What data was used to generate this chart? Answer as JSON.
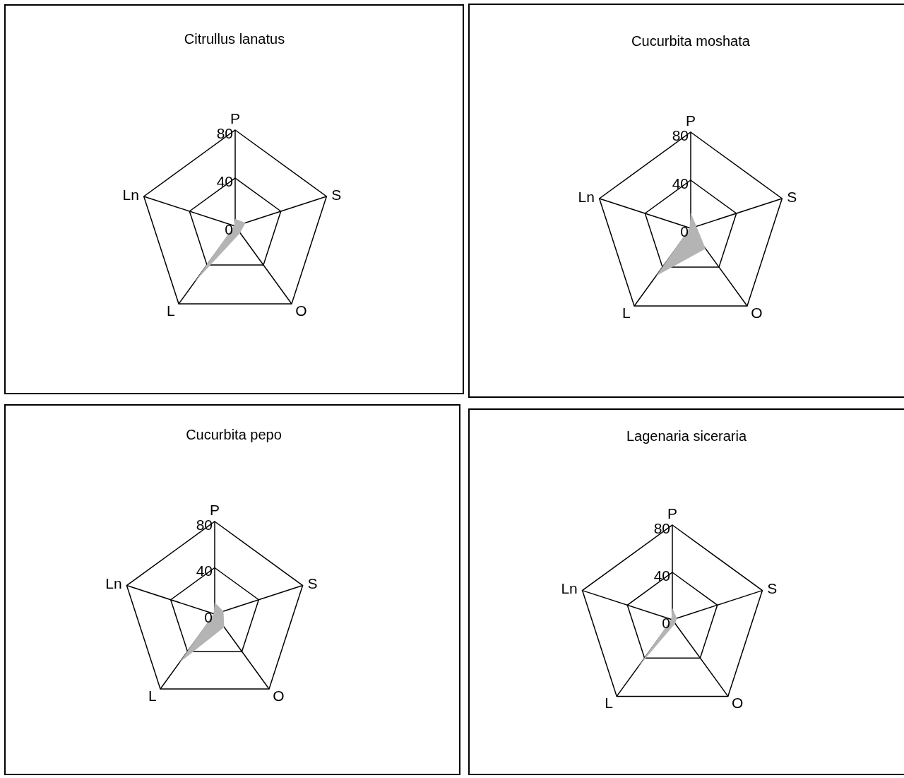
{
  "chart_data": [
    {
      "type": "radar",
      "title": "Citrullus lanatus",
      "categories": [
        "P",
        "S",
        "O",
        "L",
        "Ln"
      ],
      "series": [
        {
          "color": "#b4b4b4",
          "values": [
            6,
            9,
            7,
            58,
            1
          ]
        }
      ],
      "ylim": [
        0,
        80
      ],
      "yticks": [
        0,
        40,
        80
      ],
      "grid": true
    },
    {
      "type": "radar",
      "title": "Cucurbita moshata",
      "categories": [
        "P",
        "S",
        "O",
        "L",
        "Ln"
      ],
      "series": [
        {
          "color": "#b4b4b4",
          "values": [
            13,
            5,
            21,
            49,
            1
          ]
        }
      ],
      "ylim": [
        0,
        80
      ],
      "yticks": [
        0,
        40,
        80
      ],
      "grid": true
    },
    {
      "type": "radar",
      "title": "Cucurbita pepo",
      "categories": [
        "P",
        "S",
        "O",
        "L",
        "Ln"
      ],
      "series": [
        {
          "color": "#b4b4b4",
          "values": [
            10,
            8,
            14,
            52,
            1
          ]
        }
      ],
      "ylim": [
        0,
        80
      ],
      "yticks": [
        0,
        40,
        80
      ],
      "grid": true
    },
    {
      "type": "radar",
      "title": "Lagenaria siceraria",
      "categories": [
        "P",
        "S",
        "O",
        "L",
        "Ln"
      ],
      "series": [
        {
          "color": "#b4b4b4",
          "values": [
            10,
            4,
            4,
            50,
            1
          ]
        }
      ],
      "ylim": [
        0,
        80
      ],
      "yticks": [
        0,
        40,
        80
      ],
      "grid": true
    }
  ]
}
